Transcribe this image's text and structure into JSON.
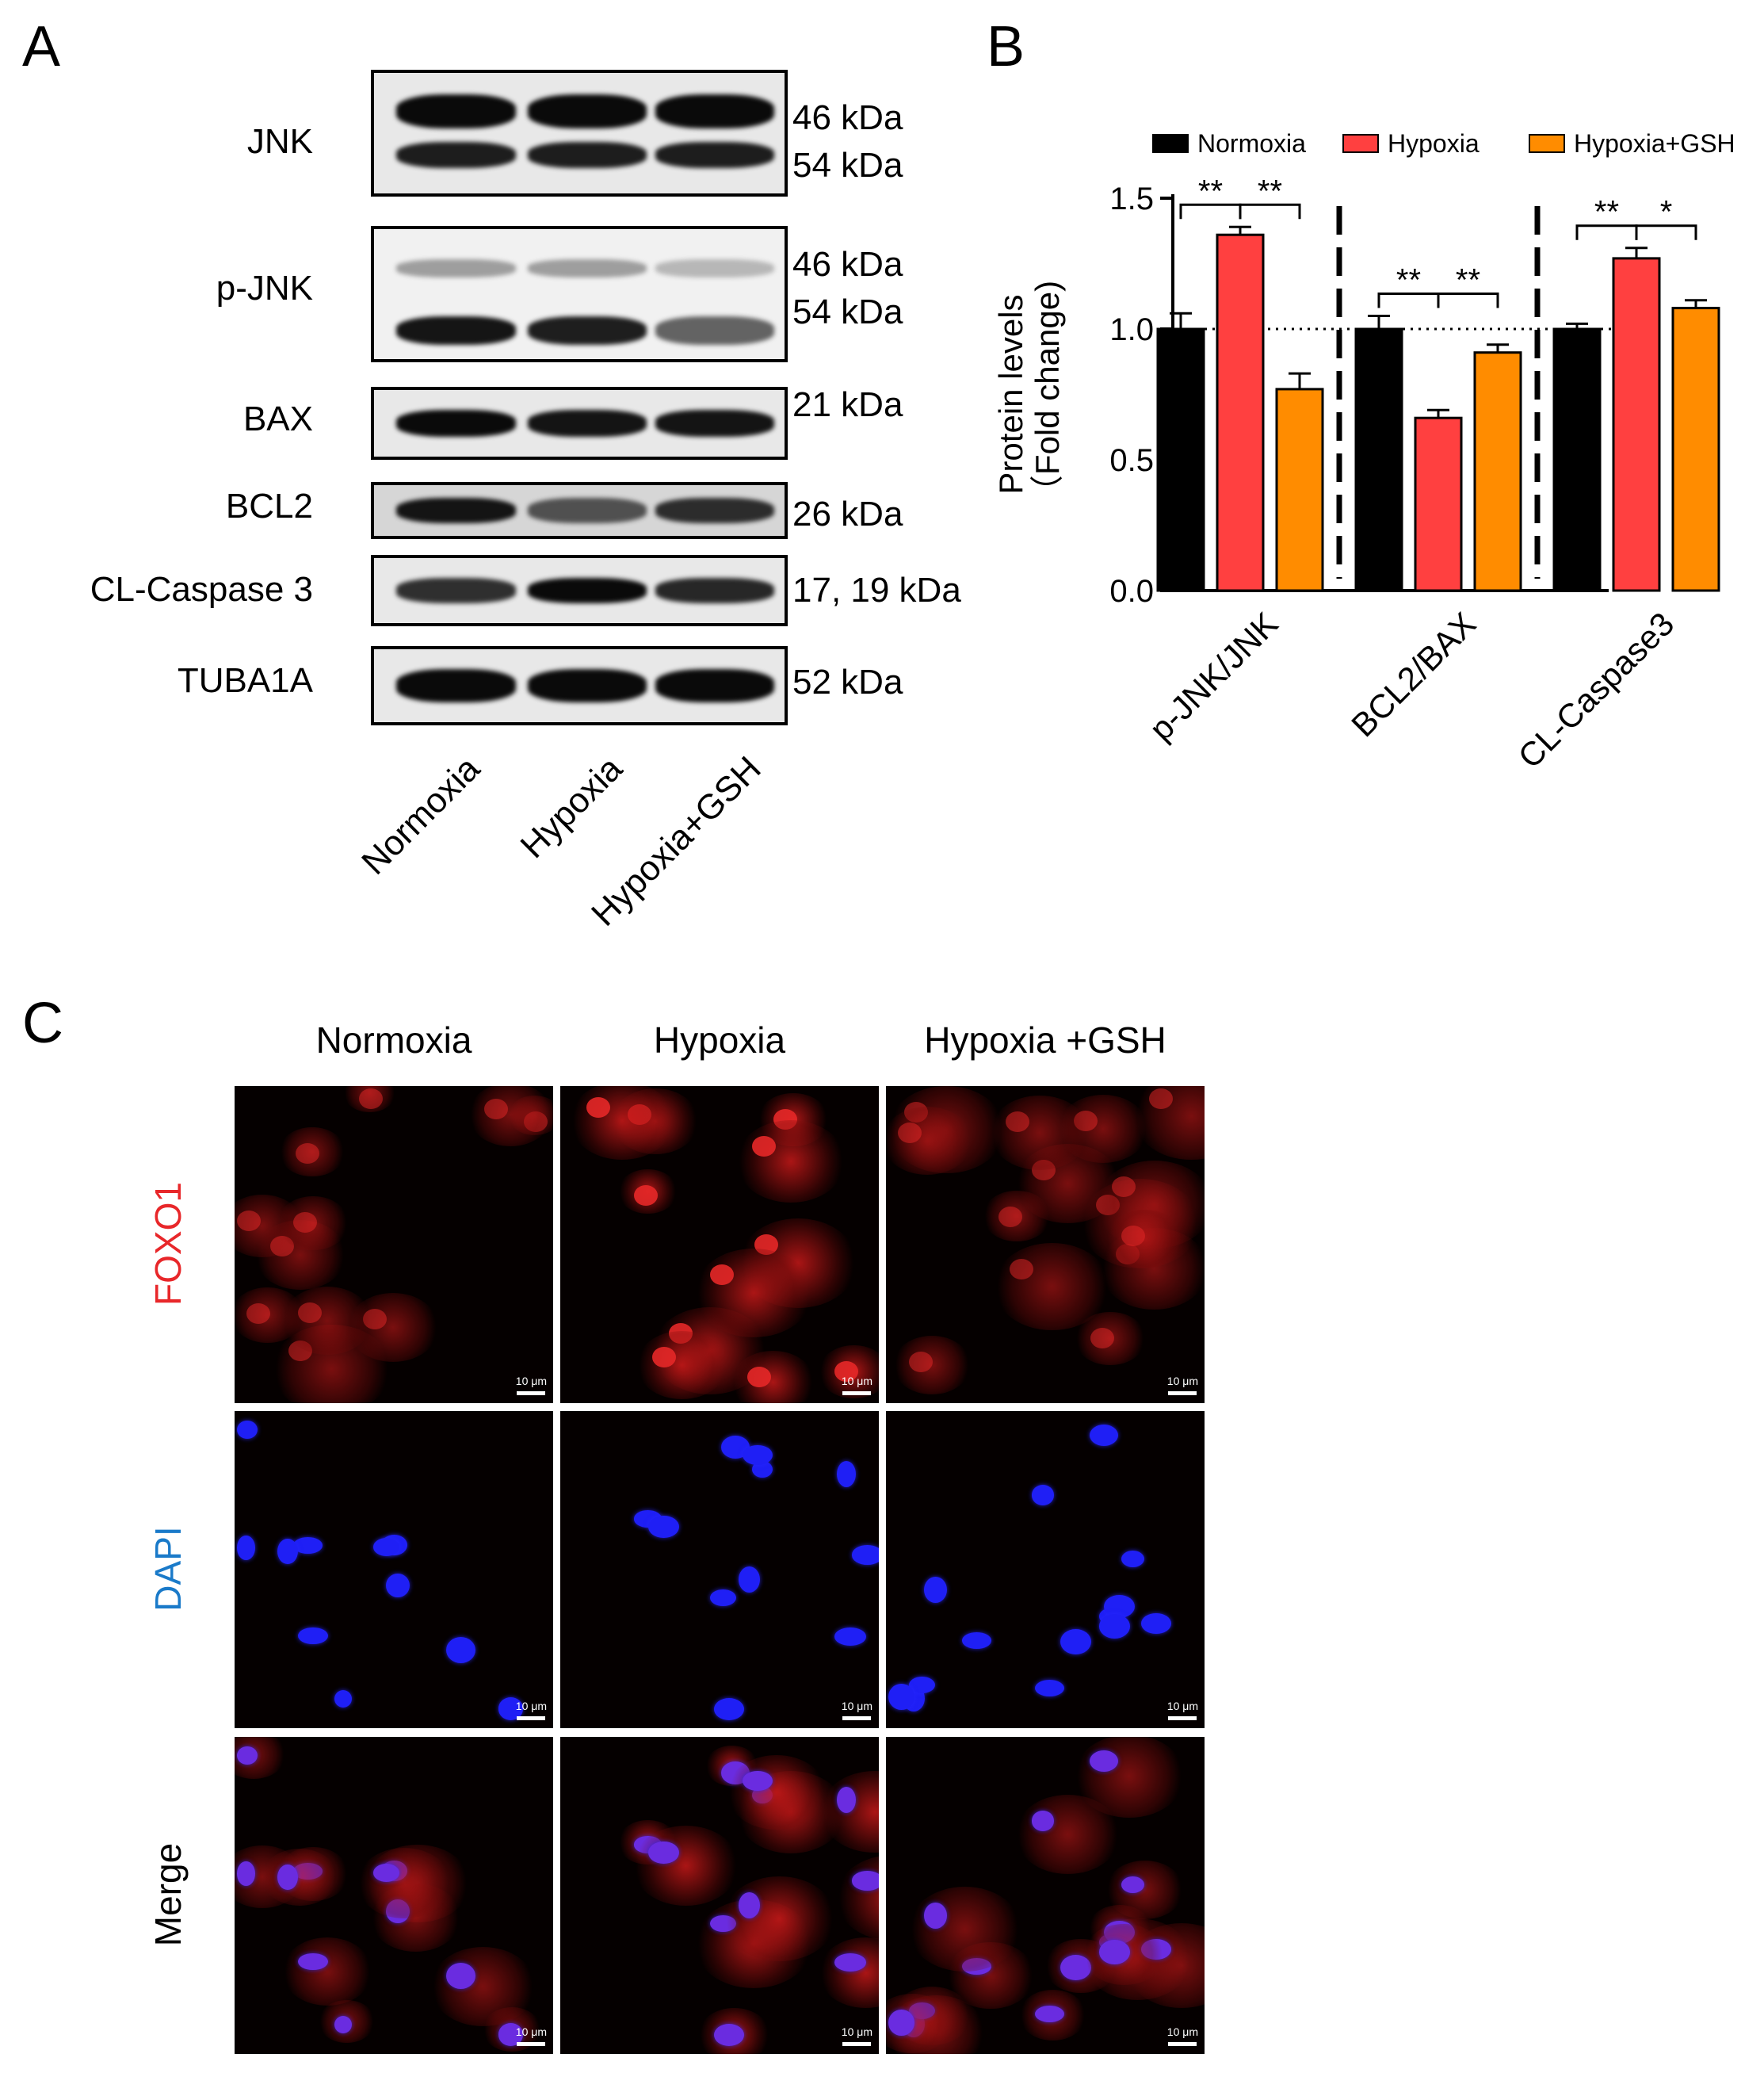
{
  "panels": {
    "a": "A",
    "b": "B",
    "c": "C"
  },
  "western_blot": {
    "rows": [
      {
        "label": "JNK",
        "kda": [
          "46 kDa",
          "54 kDa"
        ]
      },
      {
        "label": "p-JNK",
        "kda": [
          "46 kDa",
          "54 kDa"
        ]
      },
      {
        "label": "BAX",
        "kda": [
          "21 kDa"
        ]
      },
      {
        "label": "BCL2",
        "kda": [
          "26 kDa"
        ]
      },
      {
        "label": "CL-Caspase 3",
        "kda": [
          "17, 19 kDa"
        ]
      },
      {
        "label": "TUBA1A",
        "kda": [
          "52 kDa"
        ]
      }
    ],
    "lanes": [
      "Normoxia",
      "Hypoxia",
      "Hypoxia+GSH"
    ]
  },
  "chart_data": {
    "type": "bar",
    "categories": [
      "p-JNK/JNK",
      "BCL2/BAX",
      "CL-Caspase3"
    ],
    "series": [
      {
        "name": "Normoxia",
        "color": "#000000",
        "values": [
          1.0,
          1.0,
          1.0
        ],
        "errors": [
          0.06,
          0.05,
          0.02
        ]
      },
      {
        "name": "Hypoxia",
        "color": "#ff4040",
        "values": [
          1.36,
          0.66,
          1.27
        ],
        "errors": [
          0.03,
          0.03,
          0.04
        ]
      },
      {
        "name": "Hypoxia+GSH",
        "color": "#ff8c00",
        "values": [
          0.77,
          0.91,
          1.08
        ],
        "errors": [
          0.06,
          0.03,
          0.03
        ]
      }
    ],
    "ylabel": "Protein levels\n(Fold change)",
    "ylabel_line1": "Protein levels",
    "ylabel_line2": "（Fold change)",
    "yticks": [
      "0.0",
      "0.5",
      "1.0",
      "1.5"
    ],
    "ylim": [
      0,
      1.5
    ],
    "reference_line": 1.0,
    "significance": [
      {
        "group": 0,
        "from": 0,
        "to": 1,
        "label": "**"
      },
      {
        "group": 0,
        "from": 1,
        "to": 2,
        "label": "**"
      },
      {
        "group": 1,
        "from": 0,
        "to": 1,
        "label": "**"
      },
      {
        "group": 1,
        "from": 1,
        "to": 2,
        "label": "**"
      },
      {
        "group": 2,
        "from": 0,
        "to": 1,
        "label": "**"
      },
      {
        "group": 2,
        "from": 1,
        "to": 2,
        "label": "*"
      }
    ],
    "legend": "top"
  },
  "microscopy": {
    "columns": [
      "Normoxia",
      "Hypoxia",
      "Hypoxia +GSH"
    ],
    "rows": [
      {
        "label": "FOXO1",
        "color": "#e8272a"
      },
      {
        "label": "DAPI",
        "color": "#1a7ac9"
      },
      {
        "label": "Merge",
        "color": "#000000"
      }
    ],
    "scale_bar": "10 μm"
  }
}
